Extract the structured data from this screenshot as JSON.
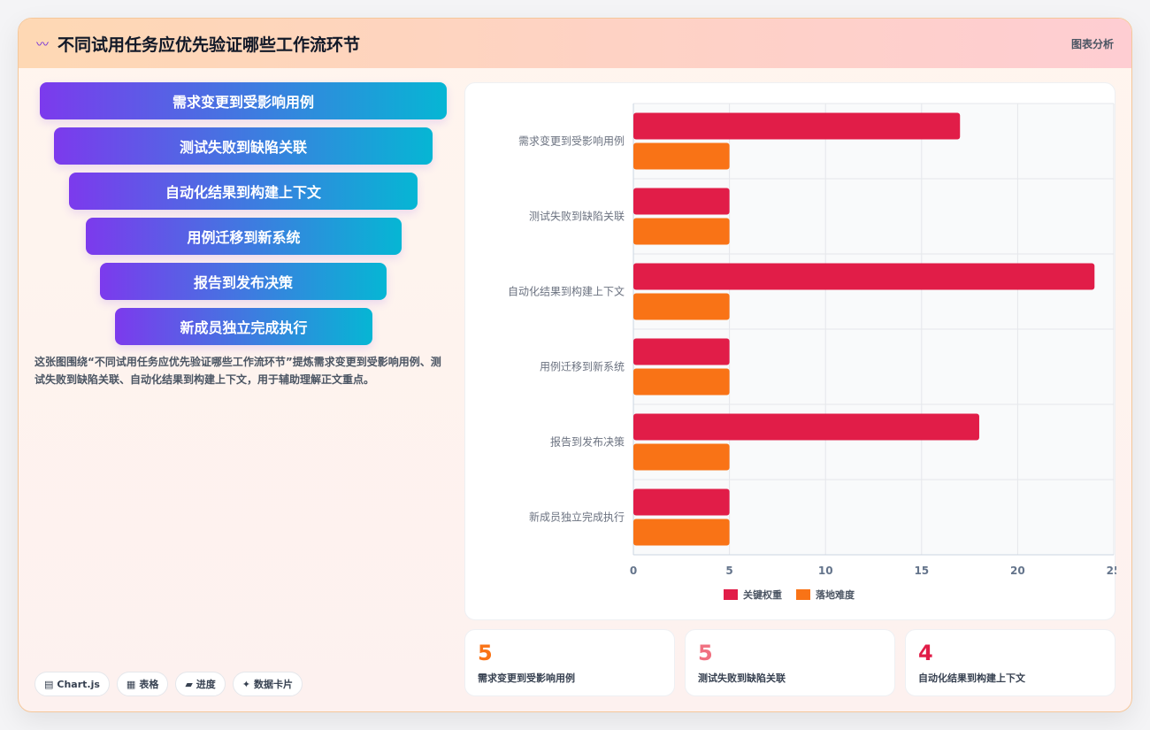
{
  "header": {
    "title": "不同试用任务应优先验证哪些工作流环节",
    "tag": "图表分析"
  },
  "funnel": [
    "需求变更到受影响用例",
    "测试失败到缺陷关联",
    "自动化结果到构建上下文",
    "用例迁移到新系统",
    "报告到发布决策",
    "新成员独立完成执行"
  ],
  "description": "这张图围绕“不同试用任务应优先验证哪些工作流环节”提炼需求变更到受影响用例、测试失败到缺陷关联、自动化结果到构建上下文，用于辅助理解正文重点。",
  "pills": [
    {
      "icon": "chart-icon",
      "glyph": "▤",
      "label": "Chart.js"
    },
    {
      "icon": "table-icon",
      "glyph": "▦",
      "label": "表格"
    },
    {
      "icon": "progress-icon",
      "glyph": "▰",
      "label": "进度"
    },
    {
      "icon": "card-icon",
      "glyph": "✦",
      "label": "数据卡片"
    }
  ],
  "chart_data": {
    "type": "bar",
    "orientation": "horizontal",
    "categories": [
      "需求变更到受影响用例",
      "测试失败到缺陷关联",
      "自动化结果到构建上下文",
      "用例迁移到新系统",
      "报告到发布决策",
      "新成员独立完成执行"
    ],
    "series": [
      {
        "name": "关键权重",
        "color": "#e11d48",
        "values": [
          17,
          5,
          24,
          5,
          18,
          5
        ]
      },
      {
        "name": "落地难度",
        "color": "#f97316",
        "values": [
          5,
          5,
          5,
          5,
          5,
          5
        ]
      }
    ],
    "xlim": [
      0,
      25
    ],
    "xticks": [
      "0",
      "5",
      "10",
      "15",
      "20",
      "25"
    ],
    "grid": true,
    "legend": "bottom"
  },
  "stats": [
    {
      "value": "5",
      "label": "需求变更到受影响用例",
      "color": "#f97316"
    },
    {
      "value": "5",
      "label": "测试失败到缺陷关联",
      "color": "#f07080"
    },
    {
      "value": "4",
      "label": "自动化结果到构建上下文",
      "color": "#e11d48"
    }
  ]
}
